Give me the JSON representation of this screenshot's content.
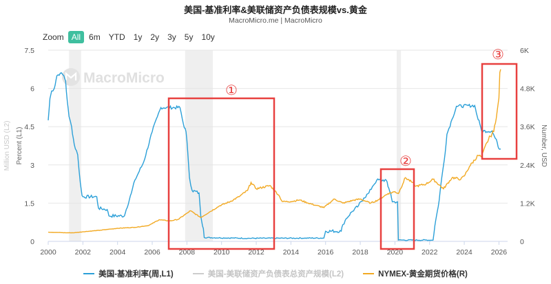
{
  "header": {
    "title": "美国-基准利率&美联储资产负债表规模vs.黄金",
    "subtitle": "MacroMicro.me | MacroMicro"
  },
  "zoom": {
    "label": "Zoom",
    "buttons": [
      "All",
      "6m",
      "YTD",
      "1y",
      "2y",
      "3y",
      "5y",
      "10y"
    ],
    "active": "All"
  },
  "watermark": "MacroMicro",
  "annotations": [
    "①",
    "②",
    "③"
  ],
  "chart_data": {
    "type": "line",
    "title": "美国-基准利率&美联储资产负债表规模vs.黄金",
    "subtitle": "MacroMicro.me | MacroMicro",
    "x_ticks": [
      "2000",
      "2002",
      "2004",
      "2006",
      "2008",
      "2010",
      "2012",
      "2014",
      "2016",
      "2018",
      "2020",
      "2022",
      "2024",
      "2026"
    ],
    "xlim": [
      2000,
      2026.5
    ],
    "y_left": {
      "label": "Percent (L1)",
      "ticks": [
        "0",
        "1.5",
        "3",
        "4.5",
        "6",
        "7.5"
      ],
      "range": [
        0,
        7.5
      ]
    },
    "y_left2": {
      "label": "Million USD (L2)"
    },
    "y_right": {
      "label": "Number, USD",
      "ticks": [
        "0",
        "1.2K",
        "2.4K",
        "3.6K",
        "4.8K",
        "6K"
      ],
      "range": [
        0,
        6000
      ]
    },
    "recession_bands": [
      [
        2001.2,
        2001.9
      ],
      [
        2007.9,
        2009.5
      ],
      [
        2020.1,
        2020.35
      ]
    ],
    "series": [
      {
        "name": "美国-基准利率(周,L1)",
        "axis": "left",
        "color": "#2a9fd8",
        "points": [
          [
            2000.0,
            4.75
          ],
          [
            2000.1,
            5.6
          ],
          [
            2000.2,
            5.9
          ],
          [
            2000.35,
            6.0
          ],
          [
            2000.5,
            6.5
          ],
          [
            2000.7,
            6.6
          ],
          [
            2000.9,
            6.5
          ],
          [
            2001.0,
            6.3
          ],
          [
            2001.1,
            5.5
          ],
          [
            2001.2,
            4.9
          ],
          [
            2001.35,
            4.5
          ],
          [
            2001.5,
            3.8
          ],
          [
            2001.7,
            3.4
          ],
          [
            2001.85,
            2.3
          ],
          [
            2001.95,
            1.8
          ],
          [
            2002.0,
            1.75
          ],
          [
            2002.8,
            1.75
          ],
          [
            2002.9,
            1.3
          ],
          [
            2003.4,
            1.25
          ],
          [
            2003.5,
            1.0
          ],
          [
            2004.4,
            1.0
          ],
          [
            2004.5,
            1.25
          ],
          [
            2004.8,
            1.9
          ],
          [
            2005.0,
            2.4
          ],
          [
            2005.5,
            3.1
          ],
          [
            2006.0,
            4.3
          ],
          [
            2006.3,
            4.9
          ],
          [
            2006.5,
            5.25
          ],
          [
            2007.6,
            5.25
          ],
          [
            2007.8,
            4.6
          ],
          [
            2007.95,
            4.3
          ],
          [
            2008.05,
            3.5
          ],
          [
            2008.15,
            2.5
          ],
          [
            2008.3,
            2.0
          ],
          [
            2008.7,
            1.9
          ],
          [
            2008.8,
            1.0
          ],
          [
            2008.95,
            0.5
          ],
          [
            2009.0,
            0.15
          ],
          [
            2011.5,
            0.12
          ],
          [
            2015.9,
            0.13
          ],
          [
            2016.0,
            0.4
          ],
          [
            2016.9,
            0.4
          ],
          [
            2017.0,
            0.66
          ],
          [
            2017.2,
            0.9
          ],
          [
            2017.5,
            1.15
          ],
          [
            2017.9,
            1.4
          ],
          [
            2018.2,
            1.7
          ],
          [
            2018.5,
            1.9
          ],
          [
            2018.7,
            2.15
          ],
          [
            2018.95,
            2.4
          ],
          [
            2019.5,
            2.4
          ],
          [
            2019.6,
            2.15
          ],
          [
            2019.75,
            1.9
          ],
          [
            2019.85,
            1.55
          ],
          [
            2020.15,
            1.55
          ],
          [
            2020.2,
            0.05
          ],
          [
            2022.2,
            0.05
          ],
          [
            2022.3,
            0.6
          ],
          [
            2022.45,
            1.2
          ],
          [
            2022.55,
            1.6
          ],
          [
            2022.7,
            2.5
          ],
          [
            2022.85,
            3.2
          ],
          [
            2023.0,
            4.2
          ],
          [
            2023.3,
            4.8
          ],
          [
            2023.55,
            5.3
          ],
          [
            2024.6,
            5.33
          ],
          [
            2024.75,
            4.9
          ],
          [
            2024.9,
            4.6
          ],
          [
            2025.0,
            4.33
          ],
          [
            2025.6,
            4.33
          ],
          [
            2025.75,
            4.1
          ],
          [
            2025.9,
            3.88
          ],
          [
            2026.0,
            3.63
          ],
          [
            2026.1,
            3.63
          ]
        ]
      },
      {
        "name": "美国-美联储资产负债表总资产规模(L2)",
        "axis": "left2",
        "color": "#cccccc",
        "points": []
      },
      {
        "name": "NYMEX-黄金期货价格(R)",
        "axis": "right",
        "color": "#f2a922",
        "points": [
          [
            2000.0,
            290
          ],
          [
            2001.0,
            270
          ],
          [
            2001.5,
            270
          ],
          [
            2002.0,
            300
          ],
          [
            2003.0,
            350
          ],
          [
            2004.0,
            410
          ],
          [
            2005.0,
            440
          ],
          [
            2005.8,
            500
          ],
          [
            2006.0,
            560
          ],
          [
            2006.4,
            680
          ],
          [
            2007.0,
            640
          ],
          [
            2007.5,
            690
          ],
          [
            2008.0,
            880
          ],
          [
            2008.2,
            960
          ],
          [
            2008.8,
            750
          ],
          [
            2009.3,
            920
          ],
          [
            2009.9,
            1120
          ],
          [
            2010.5,
            1250
          ],
          [
            2011.0,
            1400
          ],
          [
            2011.5,
            1600
          ],
          [
            2011.7,
            1850
          ],
          [
            2012.0,
            1650
          ],
          [
            2012.8,
            1750
          ],
          [
            2013.3,
            1450
          ],
          [
            2013.5,
            1250
          ],
          [
            2014.0,
            1250
          ],
          [
            2014.5,
            1300
          ],
          [
            2015.0,
            1200
          ],
          [
            2015.9,
            1060
          ],
          [
            2016.5,
            1330
          ],
          [
            2017.0,
            1200
          ],
          [
            2017.6,
            1290
          ],
          [
            2018.0,
            1330
          ],
          [
            2018.6,
            1200
          ],
          [
            2019.0,
            1290
          ],
          [
            2019.6,
            1500
          ],
          [
            2020.0,
            1560
          ],
          [
            2020.2,
            1500
          ],
          [
            2020.6,
            2000
          ],
          [
            2021.0,
            1850
          ],
          [
            2021.2,
            1730
          ],
          [
            2021.8,
            1800
          ],
          [
            2022.2,
            1950
          ],
          [
            2022.8,
            1650
          ],
          [
            2023.3,
            2000
          ],
          [
            2023.8,
            1950
          ],
          [
            2024.0,
            2050
          ],
          [
            2024.3,
            2350
          ],
          [
            2024.8,
            2700
          ],
          [
            2025.0,
            2650
          ],
          [
            2025.3,
            3100
          ],
          [
            2025.5,
            3300
          ],
          [
            2025.7,
            3450
          ],
          [
            2025.9,
            4100
          ],
          [
            2026.0,
            4500
          ],
          [
            2026.05,
            5300
          ],
          [
            2026.1,
            5400
          ]
        ]
      }
    ],
    "legend_position": "bottom"
  },
  "legend": [
    {
      "label": "美国-基准利率(周,L1)",
      "color": "#2a9fd8",
      "active": true
    },
    {
      "label": "美国-美联储资产负债表总资产规模(L2)",
      "color": "#cccccc",
      "active": false
    },
    {
      "label": "NYMEX-黄金期货价格(R)",
      "color": "#f2a922",
      "active": true
    }
  ]
}
